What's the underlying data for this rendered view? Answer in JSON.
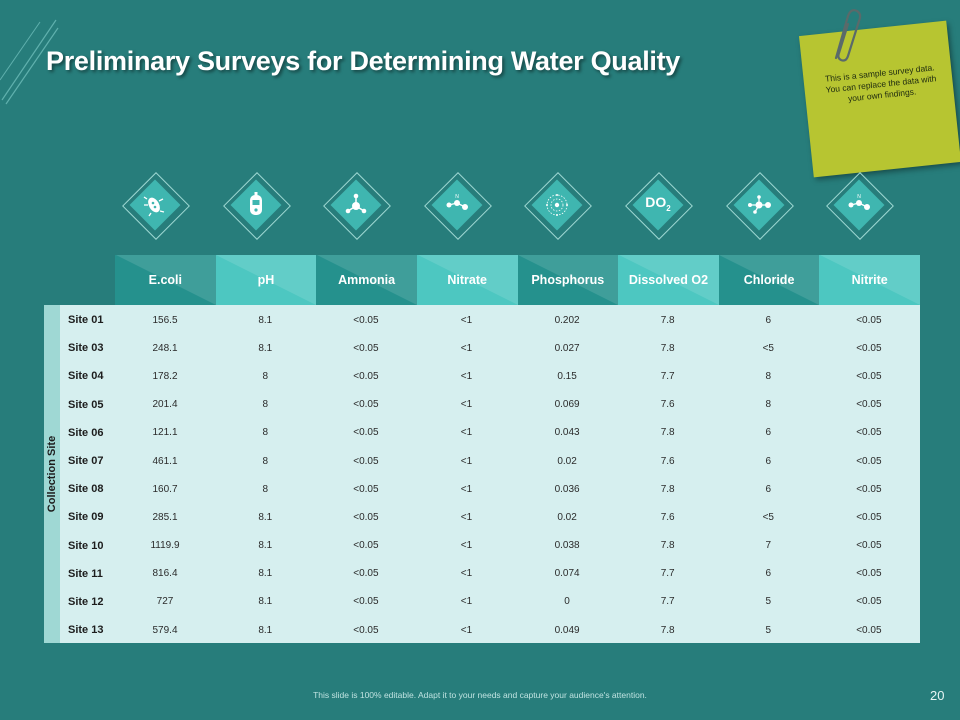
{
  "title": "Preliminary Surveys for Determining Water Quality",
  "note": {
    "text": "This is a sample survey data. You can replace the data with your own findings."
  },
  "icons": [
    {
      "name": "bacteria-icon"
    },
    {
      "name": "ph-meter-icon"
    },
    {
      "name": "ammonia-molecule-icon"
    },
    {
      "name": "nitrate-molecule-icon"
    },
    {
      "name": "phosphorus-atom-icon"
    },
    {
      "name": "do2-icon",
      "label": "DO",
      "sub": "2"
    },
    {
      "name": "chloride-molecule-icon"
    },
    {
      "name": "nitrite-molecule-icon"
    }
  ],
  "table": {
    "row_group_label": "Collection Site",
    "columns": [
      "E.coli",
      "pH",
      "Ammonia",
      "Nitrate",
      "Phosphorus",
      "Dissolved O2",
      "Chloride",
      "Nitrite"
    ],
    "rows": [
      {
        "site": "Site 01",
        "values": [
          "156.5",
          "8.1",
          "<0.05",
          "<1",
          "0.202",
          "7.8",
          "6",
          "<0.05"
        ]
      },
      {
        "site": "Site 03",
        "values": [
          "248.1",
          "8.1",
          "<0.05",
          "<1",
          "0.027",
          "7.8",
          "<5",
          "<0.05"
        ]
      },
      {
        "site": "Site 04",
        "values": [
          "178.2",
          "8",
          "<0.05",
          "<1",
          "0.15",
          "7.7",
          "8",
          "<0.05"
        ]
      },
      {
        "site": "Site 05",
        "values": [
          "201.4",
          "8",
          "<0.05",
          "<1",
          "0.069",
          "7.6",
          "8",
          "<0.05"
        ]
      },
      {
        "site": "Site 06",
        "values": [
          "121.1",
          "8",
          "<0.05",
          "<1",
          "0.043",
          "7.8",
          "6",
          "<0.05"
        ]
      },
      {
        "site": "Site 07",
        "values": [
          "461.1",
          "8",
          "<0.05",
          "<1",
          "0.02",
          "7.6",
          "6",
          "<0.05"
        ]
      },
      {
        "site": "Site 08",
        "values": [
          "160.7",
          "8",
          "<0.05",
          "<1",
          "0.036",
          "7.8",
          "6",
          "<0.05"
        ]
      },
      {
        "site": "Site 09",
        "values": [
          "285.1",
          "8.1",
          "<0.05",
          "<1",
          "0.02",
          "7.6",
          "<5",
          "<0.05"
        ]
      },
      {
        "site": "Site 10",
        "values": [
          "1119.9",
          "8.1",
          "<0.05",
          "<1",
          "0.038",
          "7.8",
          "7",
          "<0.05"
        ]
      },
      {
        "site": "Site 11",
        "values": [
          "816.4",
          "8.1",
          "<0.05",
          "<1",
          "0.074",
          "7.7",
          "6",
          "<0.05"
        ]
      },
      {
        "site": "Site 12",
        "values": [
          "727",
          "8.1",
          "<0.05",
          "<1",
          "0",
          "7.7",
          "5",
          "<0.05"
        ]
      },
      {
        "site": "Site 13",
        "values": [
          "579.4",
          "8.1",
          "<0.05",
          "<1",
          "0.049",
          "7.8",
          "5",
          "<0.05"
        ]
      }
    ]
  },
  "footer": "This slide is 100% editable. Adapt it to your needs and capture your audience's attention.",
  "page_number": "20",
  "colors": {
    "background": "#277d7b",
    "header_dark": "#25918d",
    "header_light": "#4dc7c1",
    "table_body": "#d6efef",
    "note": "#b7c531"
  }
}
